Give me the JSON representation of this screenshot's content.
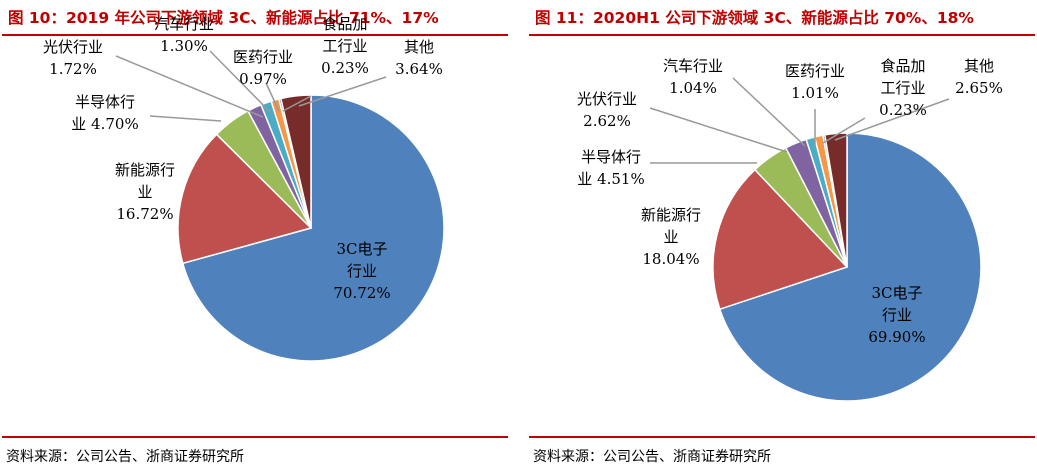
{
  "charts": [
    {
      "title": "图 10：2019 年公司下游领域 3C、新能源占比 71%、17%",
      "source": "资料来源：公司公告、浙商证券研究所"
    },
    {
      "title": "图 11：2020H1 公司下游领域 3C、新能源占比 70%、18%",
      "source": "资料来源：公司公告、浙商证券研究所"
    }
  ],
  "chart_data": [
    {
      "type": "pie",
      "title": "图 10：2019 年公司下游领域 3C、新能源占比 71%、17%",
      "slices": [
        {
          "name": "3C电子行业",
          "value": 70.72,
          "label": "70.72%",
          "color": "#4f81bd"
        },
        {
          "name": "新能源行业",
          "value": 16.72,
          "label": "16.72%",
          "color": "#c0504d"
        },
        {
          "name": "半导体行业",
          "value": 4.7,
          "label": "4.70%",
          "color": "#9bbb59"
        },
        {
          "name": "光伏行业",
          "value": 1.72,
          "label": "1.72%",
          "color": "#8064a2"
        },
        {
          "name": "汽车行业",
          "value": 1.3,
          "label": "1.30%",
          "color": "#4bacc6"
        },
        {
          "name": "医药行业",
          "value": 0.97,
          "label": "0.97%",
          "color": "#f79646"
        },
        {
          "name": "食品加工行业",
          "value": 0.23,
          "label": "0.23%",
          "color": "#2c4d75"
        },
        {
          "name": "其他",
          "value": 3.64,
          "label": "3.64%",
          "color": "#772c2a"
        }
      ]
    },
    {
      "type": "pie",
      "title": "图 11：2020H1 公司下游领域 3C、新能源占比 70%、18%",
      "slices": [
        {
          "name": "3C电子行业",
          "value": 69.9,
          "label": "69.90%",
          "color": "#4f81bd"
        },
        {
          "name": "新能源行业",
          "value": 18.04,
          "label": "18.04%",
          "color": "#c0504d"
        },
        {
          "name": "半导体行业",
          "value": 4.51,
          "label": "4.51%",
          "color": "#9bbb59"
        },
        {
          "name": "光伏行业",
          "value": 2.62,
          "label": "2.62%",
          "color": "#8064a2"
        },
        {
          "name": "汽车行业",
          "value": 1.04,
          "label": "1.04%",
          "color": "#4bacc6"
        },
        {
          "name": "医药行业",
          "value": 1.01,
          "label": "1.01%",
          "color": "#f79646"
        },
        {
          "name": "食品加工行业",
          "value": 0.23,
          "label": "0.23%",
          "color": "#2c4d75"
        },
        {
          "name": "其他",
          "value": 2.65,
          "label": "2.65%",
          "color": "#772c2a"
        }
      ]
    }
  ]
}
